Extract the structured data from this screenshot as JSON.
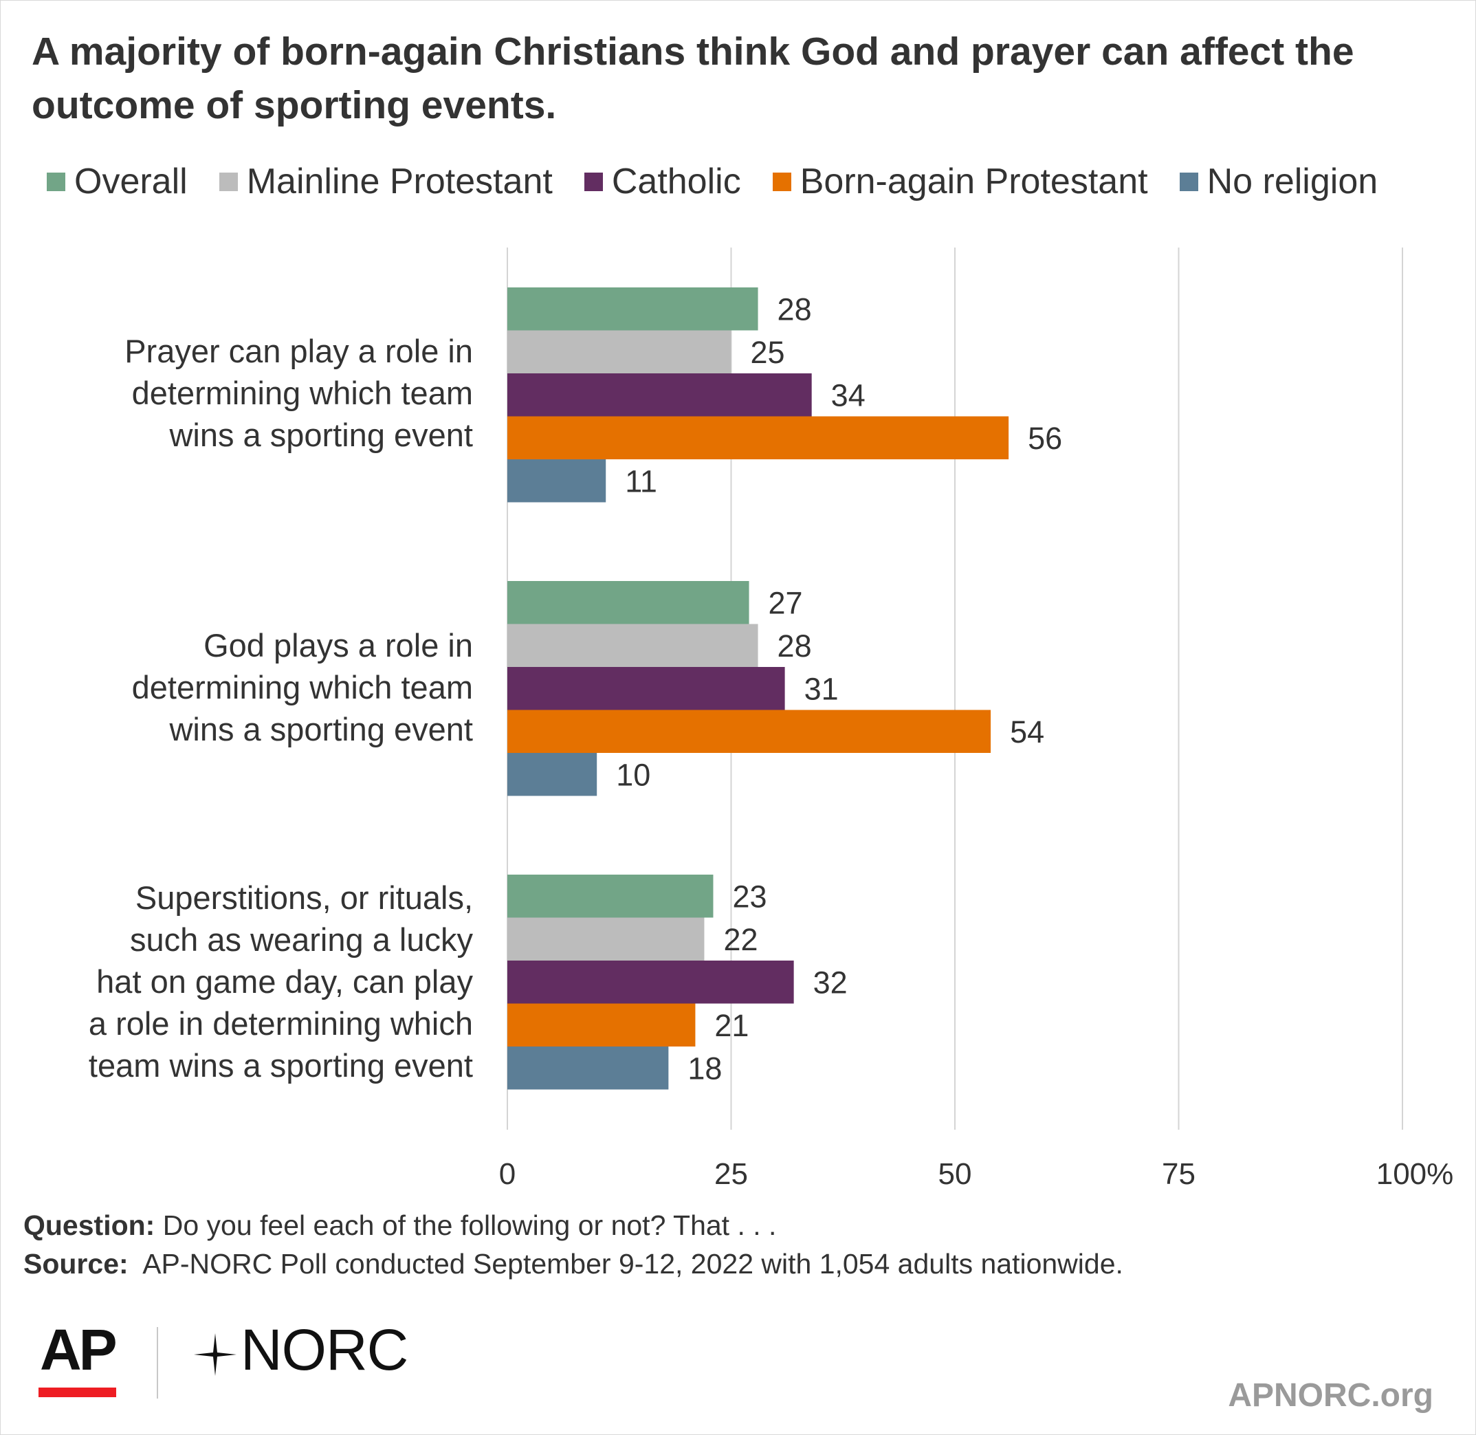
{
  "title": "A majority of born-again Christians think God and prayer can affect the outcome of sporting events.",
  "colors": {
    "Overall": "#72a587",
    "Mainline Protestant": "#bcbcbc",
    "Catholic": "#622d61",
    "Born-again Protestant": "#e57100",
    "No religion": "#5c7e96",
    "gridline": "#d4d4d4",
    "text": "#333333"
  },
  "chart_data": {
    "type": "bar",
    "orientation": "horizontal",
    "categories": [
      [
        "Prayer can play a role in",
        "determining which team",
        "wins a sporting event"
      ],
      [
        "God plays a role in",
        "determining which team",
        "wins a sporting event"
      ],
      [
        "Superstitions, or rituals,",
        "such as wearing a lucky",
        "hat on game day, can play",
        "a role in determining which",
        "team wins a sporting event"
      ]
    ],
    "series": [
      {
        "name": "Overall",
        "values": [
          28,
          27,
          23
        ]
      },
      {
        "name": "Mainline Protestant",
        "values": [
          25,
          28,
          22
        ]
      },
      {
        "name": "Catholic",
        "values": [
          34,
          31,
          32
        ]
      },
      {
        "name": "Born-again Protestant",
        "values": [
          56,
          54,
          21
        ]
      },
      {
        "name": "No religion",
        "values": [
          11,
          10,
          18
        ]
      }
    ],
    "xlim": [
      0,
      100
    ],
    "xticks": [
      0,
      25,
      50,
      75,
      100
    ],
    "xtick_labels": [
      "0",
      "25",
      "50",
      "75",
      "100%"
    ],
    "grid": true,
    "legend": "top",
    "data_labels": true
  },
  "footer": {
    "question_label": "Question:",
    "question_text": "Do you feel each of the following or not? That . . .",
    "source_label": "Source:",
    "source_text": "AP-NORC Poll conducted September 9-12, 2022 with 1,054 adults nationwide."
  },
  "logos": {
    "ap": "AP",
    "norc": "NORC",
    "website": "APNORC.org"
  }
}
